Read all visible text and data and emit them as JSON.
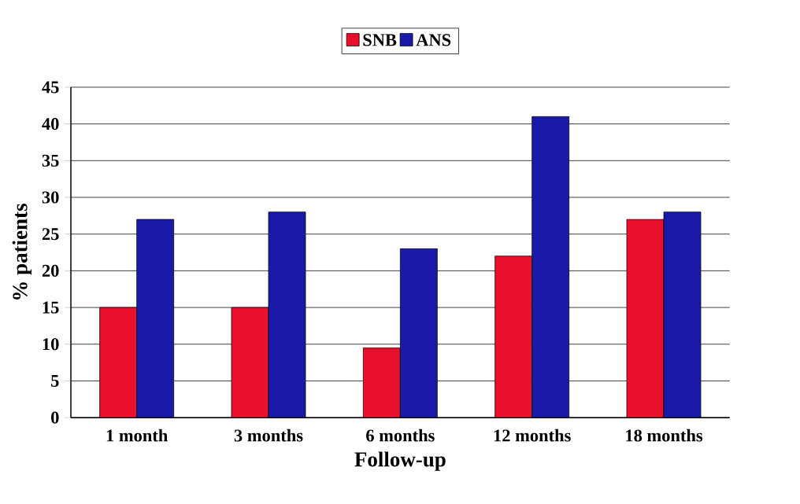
{
  "chart_data": {
    "type": "bar",
    "xlabel": "Follow-up",
    "ylabel": "% patients",
    "categories": [
      "1 month",
      "3 months",
      "6 months",
      "12 months",
      "18 months"
    ],
    "series": [
      {
        "name": "SNB",
        "color": "#e8102a",
        "values": [
          15,
          15,
          9.5,
          22,
          27
        ]
      },
      {
        "name": "ANS",
        "color": "#1a1aa8",
        "values": [
          27,
          28,
          23,
          41,
          28
        ]
      }
    ],
    "ylim": [
      0,
      45
    ],
    "yticks": [
      0,
      5,
      10,
      15,
      20,
      25,
      30,
      35,
      40,
      45
    ],
    "grid": "y",
    "legend": "top"
  }
}
